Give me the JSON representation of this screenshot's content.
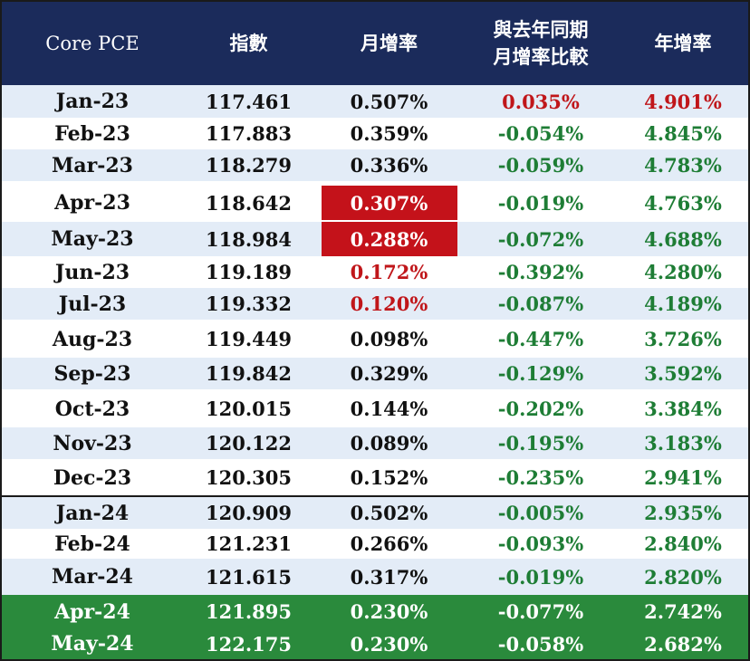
{
  "header": {
    "col1": "Core PCE",
    "col2": "指數",
    "col3": "月增率",
    "col4": "與去年同期\n月增率比較",
    "col5": "年增率"
  },
  "rows": [
    {
      "month": "Jan-23",
      "index": "117.461",
      "mom": "0.507%",
      "diff": "0.035%",
      "yoy": "4.901%"
    },
    {
      "month": "Feb-23",
      "index": "117.883",
      "mom": "0.359%",
      "diff": "-0.054%",
      "yoy": "4.845%"
    },
    {
      "month": "Mar-23",
      "index": "118.279",
      "mom": "0.336%",
      "diff": "-0.059%",
      "yoy": "4.783%"
    },
    {
      "month": "Apr-23",
      "index": "118.642",
      "mom": "0.307%",
      "diff": "-0.019%",
      "yoy": "4.763%"
    },
    {
      "month": "May-23",
      "index": "118.984",
      "mom": "0.288%",
      "diff": "-0.072%",
      "yoy": "4.688%"
    },
    {
      "month": "Jun-23",
      "index": "119.189",
      "mom": "0.172%",
      "diff": "-0.392%",
      "yoy": "4.280%"
    },
    {
      "month": "Jul-23",
      "index": "119.332",
      "mom": "0.120%",
      "diff": "-0.087%",
      "yoy": "4.189%"
    },
    {
      "month": "Aug-23",
      "index": "119.449",
      "mom": "0.098%",
      "diff": "-0.447%",
      "yoy": "3.726%"
    },
    {
      "month": "Sep-23",
      "index": "119.842",
      "mom": "0.329%",
      "diff": "-0.129%",
      "yoy": "3.592%"
    },
    {
      "month": "Oct-23",
      "index": "120.015",
      "mom": "0.144%",
      "diff": "-0.202%",
      "yoy": "3.384%"
    },
    {
      "month": "Nov-23",
      "index": "120.122",
      "mom": "0.089%",
      "diff": "-0.195%",
      "yoy": "3.183%"
    },
    {
      "month": "Dec-23",
      "index": "120.305",
      "mom": "0.152%",
      "diff": "-0.235%",
      "yoy": "2.941%"
    },
    {
      "month": "Jan-24",
      "index": "120.909",
      "mom": "0.502%",
      "diff": "-0.005%",
      "yoy": "2.935%"
    },
    {
      "month": "Feb-24",
      "index": "121.231",
      "mom": "0.266%",
      "diff": "-0.093%",
      "yoy": "2.840%"
    },
    {
      "month": "Mar-24",
      "index": "121.615",
      "mom": "0.317%",
      "diff": "-0.019%",
      "yoy": "2.820%"
    },
    {
      "month": "Apr-24",
      "index": "121.895",
      "mom": "0.230%",
      "diff": "-0.077%",
      "yoy": "2.742%"
    },
    {
      "month": "May-24",
      "index": "122.175",
      "mom": "0.230%",
      "diff": "-0.058%",
      "yoy": "2.682%"
    }
  ],
  "colors": {
    "header_bg": "#1b2b5b",
    "shade_bg": "#e3ecf7",
    "highlight_green": "#2a8a3c",
    "highlight_red": "#c4121a",
    "text_red": "#c0161a",
    "text_green": "#1e7d35"
  }
}
